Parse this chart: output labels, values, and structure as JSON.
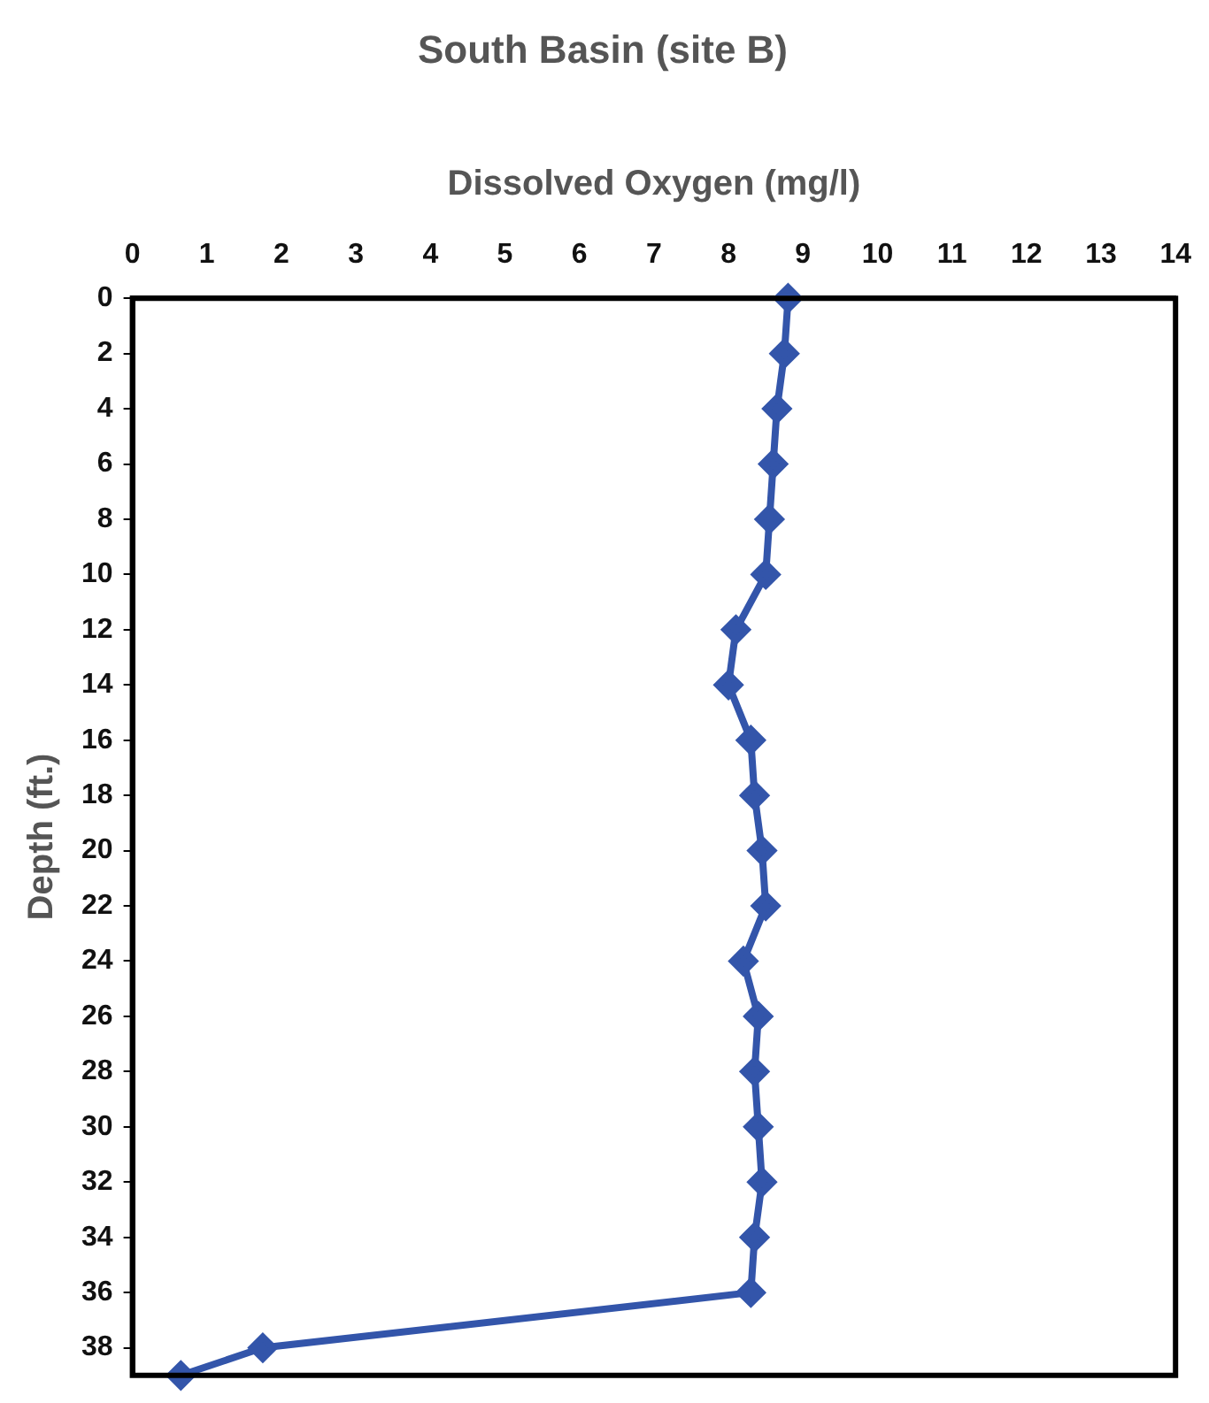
{
  "chart_data": {
    "type": "line",
    "title": "South Basin (site B)",
    "xlabel": "Dissolved Oxygen (mg/l)",
    "ylabel": "Depth (ft.)",
    "xlim": [
      0,
      14
    ],
    "xticks": [
      0,
      1,
      2,
      3,
      4,
      5,
      6,
      7,
      8,
      9,
      10,
      11,
      12,
      13,
      14
    ],
    "ylim": [
      39,
      0
    ],
    "yticks": [
      0,
      2,
      4,
      6,
      8,
      10,
      12,
      14,
      16,
      18,
      20,
      22,
      24,
      26,
      28,
      30,
      32,
      34,
      36,
      38
    ],
    "grid": false,
    "legend": false,
    "marker": "diamond",
    "line_style": "solid",
    "series": [
      {
        "color": "#3355aa",
        "x": [
          8.8,
          8.75,
          8.65,
          8.6,
          8.55,
          8.5,
          8.1,
          8.0,
          8.3,
          8.35,
          8.45,
          8.5,
          8.2,
          8.4,
          8.35,
          8.4,
          8.45,
          8.35,
          8.3,
          1.75,
          0.65
        ],
        "values": [
          0,
          2,
          4,
          6,
          8,
          10,
          12,
          14,
          16,
          18,
          20,
          22,
          24,
          26,
          28,
          30,
          32,
          34,
          36,
          38,
          39
        ]
      }
    ]
  }
}
